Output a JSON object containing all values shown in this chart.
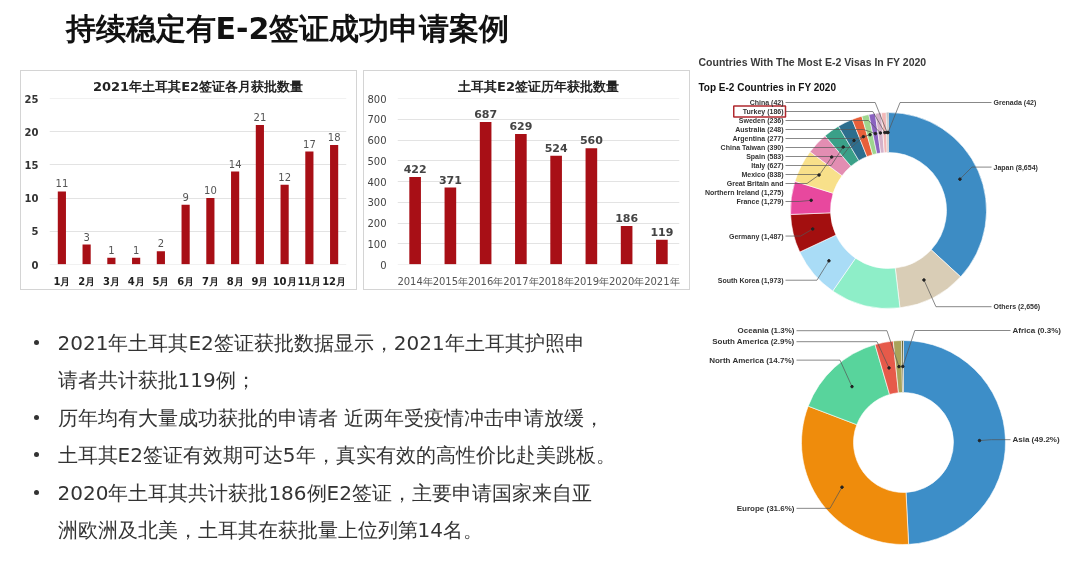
{
  "chart_data": [
    {
      "type": "other",
      "title": "持续稳定有E-2签证成功申请案例",
      "annotations": [
        "2021年土耳其E2签证获批数据显示，2021年土耳其护照申请者共计获批119例；",
        "历年均有大量成功获批的申请者 近两年受疫情冲击申请放缓，",
        "土耳其E2签证有效期可达5年，真实有效的高性价比赴美跳板。",
        "2020年土耳其共计获批186例E2签证，主要申请国家来自亚洲欧洲及北美，土耳其在获批量上位列第14名。"
      ]
    },
    {
      "type": "bar",
      "title": "2021年土耳其E2签证各月获批数量",
      "categories": [
        "1月",
        "2月",
        "3月",
        "4月",
        "5月",
        "6月",
        "7月",
        "8月",
        "9月",
        "10月",
        "11月",
        "12月"
      ],
      "values": [
        11,
        3,
        1,
        1,
        2,
        9,
        10,
        14,
        21,
        12,
        17,
        18
      ],
      "color": "#a80f16",
      "ylim": [
        0,
        25
      ],
      "yticks": [
        0,
        5,
        10,
        15,
        20,
        25
      ],
      "grid": "y",
      "data_labels": true
    },
    {
      "type": "bar",
      "title": "土耳其E2签证历年获批数量",
      "categories": [
        "2014年",
        "2015年",
        "2016年",
        "2017年",
        "2018年",
        "2019年",
        "2020年",
        "2021年"
      ],
      "values": [
        422,
        371,
        687,
        629,
        524,
        560,
        186,
        119
      ],
      "color": "#a80f16",
      "ylim": [
        0,
        800
      ],
      "yticks": [
        0,
        100,
        200,
        300,
        400,
        500,
        600,
        700,
        800
      ],
      "grid": "y",
      "data_labels": true
    },
    {
      "type": "donut",
      "title": "Countries With The Most E-2 Visas In FY 2020",
      "subtitle": "Top E-2 Countries in FY 2020",
      "categories": [
        "Japan",
        "Others",
        null,
        "South Korea",
        "Germany",
        "France",
        "Great Britain and Northern Ireland",
        "Mexico",
        "Italy",
        "Spain",
        "China Taiwan",
        "Argentina",
        "Australia",
        "Sweden",
        "Turkey",
        "China",
        "Grenada"
      ],
      "values": [
        8654,
        2656,
        2700,
        1973,
        1487,
        1279,
        1275,
        838,
        627,
        583,
        390,
        277,
        248,
        236,
        186,
        42,
        42
      ],
      "value_labels": [
        "(8,654)",
        "(2,656)",
        null,
        "(1,973)",
        "(1,487)",
        "(1,279)",
        "(1,275)",
        "(838)",
        "(627)",
        "(583)",
        "(390)",
        "(277)",
        "(248)",
        "(236)",
        "(186)",
        "(42)",
        "(42)"
      ],
      "colors": [
        "#3d8cc4",
        "#d9cdb6",
        "#8eeec8",
        "#a9dcf6",
        "#a30f0f",
        "#e8489e",
        "#f8e08a",
        "#e38db2",
        "#3aa088",
        "#2d6e8e",
        "#e8603a",
        "#9ed68e",
        "#8a63c0",
        "#d5b2c9",
        "#f2b8b8",
        "#9a9a9a",
        "#2a2a2a"
      ]
    },
    {
      "type": "donut",
      "categories": [
        "Asia",
        "Europe",
        "North America",
        "South America",
        "Oceania",
        "Africa"
      ],
      "values": [
        49.2,
        31.6,
        14.7,
        2.9,
        1.3,
        0.3
      ],
      "value_labels": [
        "(49.2%)",
        "(31.6%)",
        "(14.7%)",
        "(2.9%)",
        "(1.3%)",
        "(0.3%)"
      ],
      "colors": [
        "#3d8ec8",
        "#ef8c0c",
        "#58d49c",
        "#e65a4a",
        "#a9a35a",
        "#5a5a32"
      ]
    }
  ]
}
